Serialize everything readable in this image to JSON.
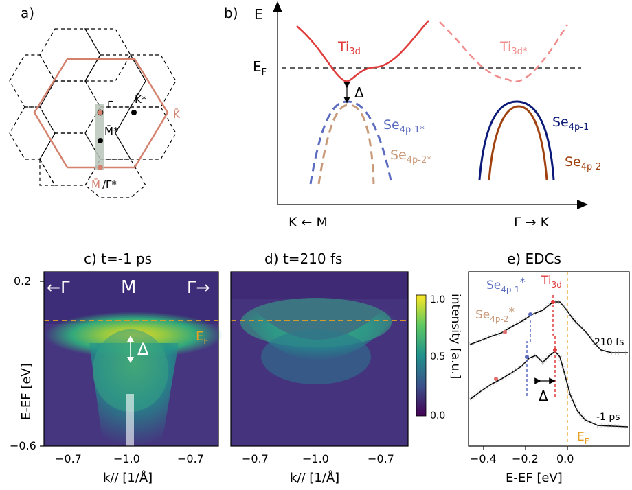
{
  "panel_a": {
    "label": "a)",
    "points": {
      "gamma": "Γ̄",
      "k_star": "K̄*",
      "k": "K̄",
      "m_star": "M̄*",
      "m": "M̄",
      "gamma_star": "/Γ̄*"
    },
    "colors": {
      "bz": "#d4826e",
      "gray": "#b8c4b8"
    }
  },
  "panel_b": {
    "label": "b)",
    "axis_E": "E",
    "ef_main": "E",
    "ef_sub": "F",
    "delta": "Δ",
    "xlabel_left": "K ← M",
    "xlabel_right": "Γ → K",
    "bands": {
      "ti3d": {
        "base": "Ti",
        "sub": "3d",
        "color": "#e03c3c"
      },
      "ti3d_star": {
        "base": "Ti",
        "sub": "3d*",
        "color": "#f08c8c"
      },
      "se1_star": {
        "base": "Se",
        "sub": "4p-1*",
        "color": "#5b6bc0"
      },
      "se2_star": {
        "base": "Se",
        "sub": "4p-2*",
        "color": "#c89a7a"
      },
      "se1": {
        "base": "Se",
        "sub": "4p-1",
        "color": "#0b1a78"
      },
      "se2": {
        "base": "Se",
        "sub": "4p-2",
        "color": "#a0420f"
      }
    }
  },
  "panel_c": {
    "title": "c) t=-1 ps",
    "label_gamma_left": "←Γ",
    "label_m": "M",
    "label_gamma_right": "Γ→",
    "delta": "Δ",
    "ef_main": "E",
    "ef_sub": "F",
    "ylabel": "E-EF [eV]",
    "yticks": [
      "0.2",
      "−0.6"
    ],
    "xticks": [
      "−0.7",
      "−1.0",
      "−0.7"
    ],
    "xlabel": "k// [1/Å]"
  },
  "panel_d": {
    "title": "d) t=210 fs",
    "xticks": [
      "−0.7",
      "−1.0",
      "−0.7"
    ],
    "xlabel": "k// [1/Å]"
  },
  "colorbar": {
    "ticks": [
      "1.0",
      "0.5",
      "0.0"
    ],
    "label": "intensity [a.u.]"
  },
  "panel_e": {
    "title": "e) EDCs",
    "label_se1_base": "Se",
    "label_se1_sub": "4p-1",
    "label_se1_star": "*",
    "label_se2_base": "Se",
    "label_se2_sub": "4p-2",
    "label_se2_star": "*",
    "label_ti_base": "Ti",
    "label_ti_sub": "3d",
    "curve_210": "210 fs",
    "curve_m1": "-1 ps",
    "delta": "Δ",
    "ef_main": "E",
    "ef_sub": "F",
    "xticks": [
      "−0.4",
      "−0.2",
      "0.0"
    ],
    "xlabel": "E-EF [eV]"
  }
}
